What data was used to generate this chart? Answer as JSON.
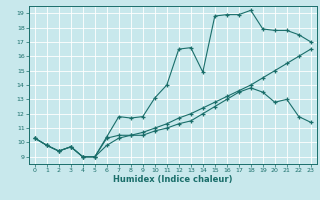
{
  "xlabel": "Humidex (Indice chaleur)",
  "bg_color": "#c8e8ec",
  "grid_color": "#add8dc",
  "line_color": "#1a6e6a",
  "xlim": [
    -0.5,
    23.5
  ],
  "ylim": [
    8.5,
    19.5
  ],
  "xticks": [
    0,
    1,
    2,
    3,
    4,
    5,
    6,
    7,
    8,
    9,
    10,
    11,
    12,
    13,
    14,
    15,
    16,
    17,
    18,
    19,
    20,
    21,
    22,
    23
  ],
  "yticks": [
    9,
    10,
    11,
    12,
    13,
    14,
    15,
    16,
    17,
    18,
    19
  ],
  "line1_x": [
    0,
    1,
    2,
    3,
    4,
    5,
    6,
    7,
    8,
    9,
    10,
    11,
    12,
    13,
    14,
    15,
    16,
    17,
    18,
    19,
    20,
    21,
    22,
    23
  ],
  "line1_y": [
    10.3,
    9.8,
    9.4,
    9.7,
    9.0,
    9.0,
    9.8,
    10.3,
    10.5,
    10.7,
    11.0,
    11.3,
    11.7,
    12.0,
    12.4,
    12.8,
    13.2,
    13.6,
    14.0,
    14.5,
    15.0,
    15.5,
    16.0,
    16.5
  ],
  "line2_x": [
    0,
    1,
    2,
    3,
    4,
    5,
    6,
    7,
    8,
    9,
    10,
    11,
    12,
    13,
    14,
    15,
    16,
    17,
    18,
    19,
    20,
    21,
    22,
    23
  ],
  "line2_y": [
    10.3,
    9.8,
    9.4,
    9.7,
    9.0,
    9.0,
    10.4,
    11.8,
    11.7,
    11.8,
    13.1,
    14.0,
    16.5,
    16.6,
    14.9,
    18.8,
    18.9,
    18.9,
    19.2,
    17.9,
    17.8,
    17.8,
    17.5,
    17.0
  ],
  "line3_x": [
    0,
    1,
    2,
    3,
    4,
    5,
    6,
    7,
    8,
    9,
    10,
    11,
    12,
    13,
    14,
    15,
    16,
    17,
    18,
    19,
    20,
    21,
    22,
    23
  ],
  "line3_y": [
    10.3,
    9.8,
    9.4,
    9.7,
    9.0,
    9.0,
    10.3,
    10.5,
    10.5,
    10.5,
    10.8,
    11.0,
    11.3,
    11.5,
    12.0,
    12.5,
    13.0,
    13.5,
    13.8,
    13.5,
    12.8,
    13.0,
    11.8,
    11.4
  ]
}
